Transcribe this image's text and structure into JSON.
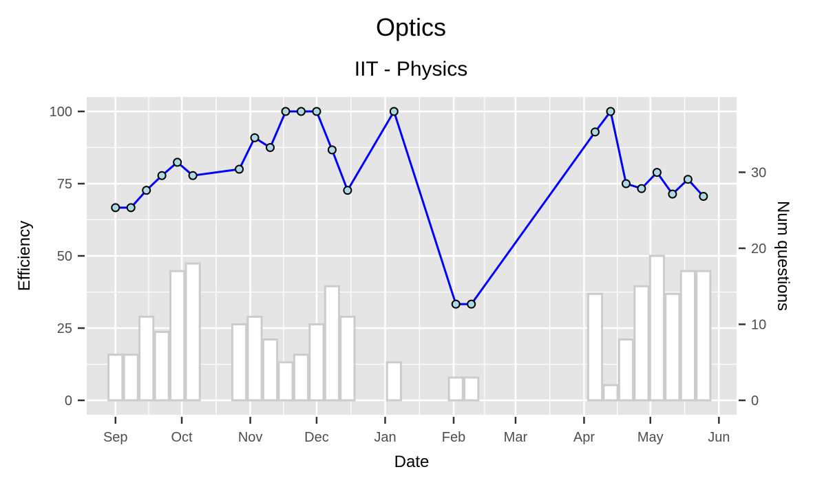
{
  "chart_data": {
    "type": "line",
    "title": "Optics",
    "subtitle": "IIT - Physics",
    "xlabel": "Date",
    "ylabel": "Efficiency",
    "y2label": "Num questions",
    "x_ticks": [
      "Sep",
      "Oct",
      "Nov",
      "Dec",
      "Jan",
      "Feb",
      "Mar",
      "Apr",
      "May",
      "Jun"
    ],
    "x_tick_dates": [
      "2000-09-01",
      "2000-10-01",
      "2000-11-01",
      "2000-12-01",
      "2001-01-01",
      "2001-02-01",
      "2001-03-01",
      "2001-04-01",
      "2001-05-01",
      "2001-06-01"
    ],
    "xlim": [
      "2000-08-19",
      "2001-06-09"
    ],
    "y_ticks": [
      0,
      25,
      50,
      75,
      100
    ],
    "ylim": [
      -5,
      105
    ],
    "y2_ticks": [
      0,
      10,
      20,
      30
    ],
    "y2lim": [
      -1.9,
      39.9
    ],
    "grid": true,
    "colors": {
      "panel": "#e5e5e5",
      "grid": "#ffffff",
      "line": "#0000ff",
      "point_fill": "#add8e6",
      "point_stroke": "#000000",
      "bar_fill": "#ffffff",
      "bar_stroke": "#cccccc",
      "tick_label": "#4d4d4d"
    },
    "series": [
      {
        "name": "Efficiency",
        "axis": "left",
        "type": "line",
        "x": [
          "2000-09-01",
          "2000-09-08",
          "2000-09-15",
          "2000-09-22",
          "2000-09-29",
          "2000-10-06",
          "2000-10-27",
          "2000-11-03",
          "2000-11-10",
          "2000-11-17",
          "2000-11-24",
          "2000-12-01",
          "2000-12-08",
          "2000-12-15",
          "2001-01-05",
          "2001-02-02",
          "2001-02-09",
          "2001-04-06",
          "2001-04-13",
          "2001-04-20",
          "2001-04-27",
          "2001-05-04",
          "2001-05-11",
          "2001-05-18",
          "2001-05-25"
        ],
        "values": [
          66.7,
          66.7,
          72.7,
          77.8,
          82.4,
          77.8,
          80,
          90.9,
          87.5,
          100,
          100,
          100,
          86.7,
          72.7,
          100,
          33.3,
          33.3,
          92.9,
          100,
          75,
          73.3,
          78.9,
          71.4,
          76.5,
          70.6
        ]
      },
      {
        "name": "Num questions",
        "axis": "right",
        "type": "bar",
        "x": [
          "2000-09-01",
          "2000-09-08",
          "2000-09-15",
          "2000-09-22",
          "2000-09-29",
          "2000-10-06",
          "2000-10-27",
          "2000-11-03",
          "2000-11-10",
          "2000-11-17",
          "2000-11-24",
          "2000-12-01",
          "2000-12-08",
          "2000-12-15",
          "2001-01-05",
          "2001-02-02",
          "2001-02-09",
          "2001-04-06",
          "2001-04-13",
          "2001-04-20",
          "2001-04-27",
          "2001-05-04",
          "2001-05-11",
          "2001-05-18",
          "2001-05-25"
        ],
        "values": [
          6,
          6,
          11,
          9,
          17,
          18,
          10,
          11,
          8,
          5,
          6,
          10,
          15,
          11,
          5,
          3,
          3,
          14,
          2,
          8,
          15,
          19,
          14,
          17,
          17
        ]
      }
    ]
  }
}
